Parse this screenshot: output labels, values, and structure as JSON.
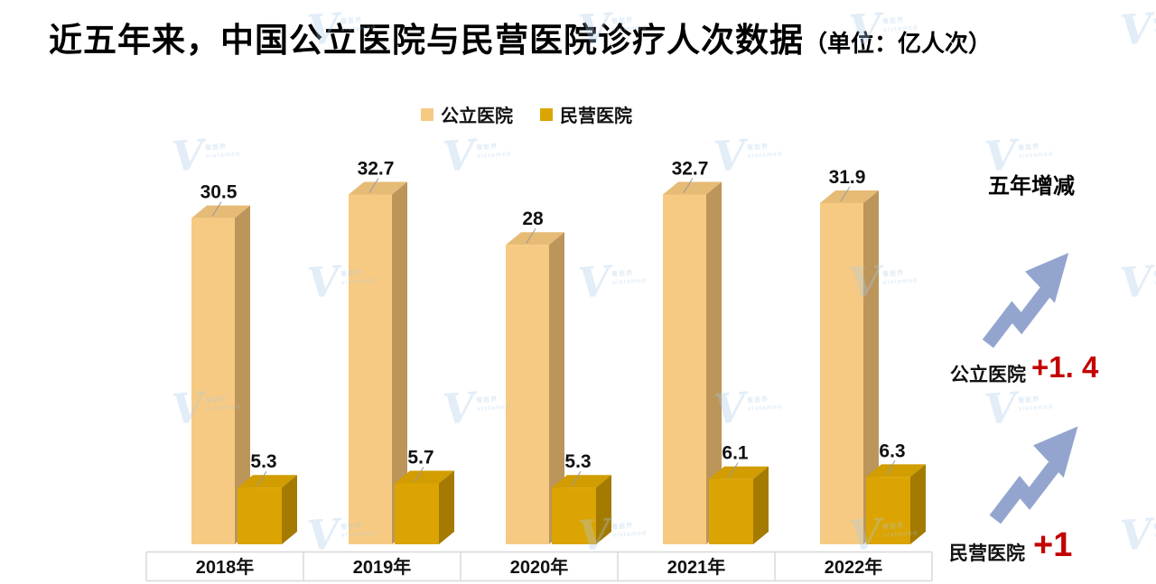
{
  "title": {
    "main": "近五年来，中国公立医院与民营医院诊疗人次数据",
    "unit": "（单位：亿人次）"
  },
  "legend": {
    "items": [
      {
        "label": "公立医院",
        "color": "#F6CA82"
      },
      {
        "label": "民营医院",
        "color": "#DBA402"
      }
    ]
  },
  "chart_data": {
    "type": "bar",
    "style": "3d-grouped-columns",
    "title": "近五年来，中国公立医院与民营医院诊疗人次数据",
    "unit": "亿人次",
    "categories": [
      "2018年",
      "2019年",
      "2020年",
      "2021年",
      "2022年"
    ],
    "series": [
      {
        "name": "公立医院",
        "values": [
          30.5,
          32.7,
          28,
          32.7,
          31.9
        ],
        "faces": {
          "front": "#F6CA82",
          "top": "#E6BB76",
          "side": "#BC955B"
        }
      },
      {
        "name": "民营医院",
        "values": [
          5.3,
          5.7,
          5.3,
          6.1,
          6.3
        ],
        "faces": {
          "front": "#DBA402",
          "top": "#D19D00",
          "side": "#A47B00"
        }
      }
    ],
    "ylim": [
      0,
      35
    ],
    "grid": false,
    "legend_position": "top",
    "value_labels": true,
    "axis_line_color": "#D8D8D8",
    "leader_line_color": "#9a9a9a",
    "label_color": "#111111"
  },
  "summary": {
    "heading": "五年增减",
    "rows": [
      {
        "label": "公立医院",
        "change": "+1. 4"
      },
      {
        "label": "民营医院",
        "change": "+1"
      }
    ],
    "change_color": "#C40000",
    "arrow_color": "#93A5CF"
  },
  "watermark": {
    "letter": "V",
    "line1": "看医界",
    "line2": "vistamed"
  }
}
